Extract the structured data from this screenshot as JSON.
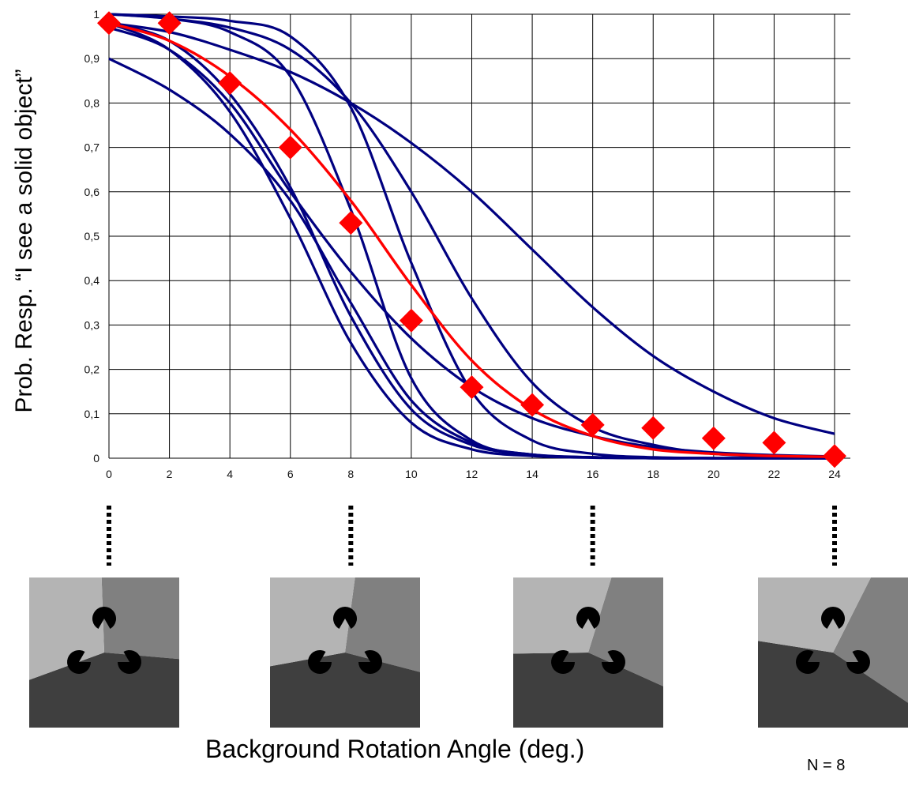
{
  "chart_data": {
    "type": "line",
    "title": "",
    "xlabel": "Background Rotation Angle (deg.)",
    "ylabel": "Prob. Resp. “I see a solid object”",
    "xlim": [
      0,
      24
    ],
    "ylim": [
      0,
      1
    ],
    "x_ticks": [
      "0",
      "2",
      "4",
      "6",
      "8",
      "10",
      "12",
      "14",
      "16",
      "18",
      "20",
      "22",
      "24"
    ],
    "y_ticks": [
      "0",
      "0,1",
      "0,2",
      "0,3",
      "0,4",
      "0,5",
      "0,6",
      "0,7",
      "0,8",
      "0,9",
      "1"
    ],
    "grid": true,
    "mean_points": {
      "x": [
        0,
        2,
        4,
        6,
        8,
        10,
        12,
        14,
        16,
        18,
        20,
        22,
        24
      ],
      "y": [
        0.98,
        0.98,
        0.845,
        0.7,
        0.53,
        0.31,
        0.16,
        0.12,
        0.075,
        0.068,
        0.045,
        0.035,
        0.005
      ],
      "color": "#ff0000"
    },
    "mean_fit": {
      "x": [
        0,
        2,
        4,
        6,
        8,
        10,
        12,
        14,
        16,
        18,
        20,
        22,
        24
      ],
      "y": [
        0.98,
        0.94,
        0.86,
        0.74,
        0.58,
        0.39,
        0.22,
        0.11,
        0.05,
        0.02,
        0.01,
        0.005,
        0.003
      ],
      "color": "#ff0000"
    },
    "observer_fits": [
      {
        "x": [
          0,
          2,
          4,
          6,
          8,
          10,
          12,
          14,
          16,
          18,
          20,
          22,
          24
        ],
        "y": [
          0.9,
          0.83,
          0.73,
          0.58,
          0.35,
          0.13,
          0.035,
          0.008,
          0.002,
          0.001,
          0.0,
          0.0,
          0.0
        ]
      },
      {
        "x": [
          0,
          2,
          4,
          6,
          8,
          10,
          12,
          14,
          16,
          18,
          20,
          22,
          24
        ],
        "y": [
          0.98,
          0.92,
          0.78,
          0.54,
          0.26,
          0.08,
          0.02,
          0.005,
          0.001,
          0.0,
          0.0,
          0.0,
          0.0
        ]
      },
      {
        "x": [
          0,
          2,
          4,
          6,
          8,
          10,
          12,
          14,
          16,
          18,
          20,
          22,
          24
        ],
        "y": [
          0.98,
          0.94,
          0.82,
          0.61,
          0.32,
          0.11,
          0.03,
          0.008,
          0.002,
          0.0,
          0.0,
          0.0,
          0.0
        ]
      },
      {
        "x": [
          0,
          2,
          4,
          6,
          8,
          10,
          12,
          14,
          16,
          18,
          20,
          22,
          24
        ],
        "y": [
          0.97,
          0.92,
          0.8,
          0.6,
          0.42,
          0.27,
          0.16,
          0.09,
          0.05,
          0.025,
          0.013,
          0.007,
          0.004
        ]
      },
      {
        "x": [
          0,
          2,
          4,
          6,
          8,
          10,
          12,
          14,
          16,
          18,
          20,
          22,
          24
        ],
        "y": [
          1.0,
          0.99,
          0.96,
          0.86,
          0.56,
          0.18,
          0.04,
          0.008,
          0.002,
          0.0,
          0.0,
          0.0,
          0.0
        ]
      },
      {
        "x": [
          0,
          2,
          4,
          6,
          8,
          10,
          12,
          14,
          16,
          18,
          20,
          22,
          24
        ],
        "y": [
          1.0,
          0.995,
          0.985,
          0.95,
          0.79,
          0.44,
          0.15,
          0.04,
          0.01,
          0.002,
          0.0,
          0.0,
          0.0
        ]
      },
      {
        "x": [
          0,
          2,
          4,
          6,
          8,
          10,
          12,
          14,
          16,
          18,
          20,
          22,
          24
        ],
        "y": [
          1.0,
          0.99,
          0.97,
          0.92,
          0.8,
          0.6,
          0.36,
          0.17,
          0.07,
          0.03,
          0.01,
          0.004,
          0.001
        ]
      },
      {
        "x": [
          0,
          2,
          4,
          6,
          8,
          10,
          12,
          14,
          16,
          18,
          20,
          22,
          24
        ],
        "y": [
          0.98,
          0.96,
          0.92,
          0.87,
          0.8,
          0.71,
          0.6,
          0.47,
          0.34,
          0.23,
          0.15,
          0.09,
          0.055
        ]
      }
    ],
    "observer_color": "#000080",
    "note": "N = 8",
    "stimulus_angles": [
      0,
      8,
      16,
      24
    ]
  },
  "colors": {
    "grid": "#000000",
    "observer": "#000080",
    "mean": "#ff0000",
    "stimulus_light": "#b4b4b4",
    "stimulus_mid": "#808080",
    "stimulus_dark": "#3f3f3f",
    "inducer": "#000000"
  }
}
